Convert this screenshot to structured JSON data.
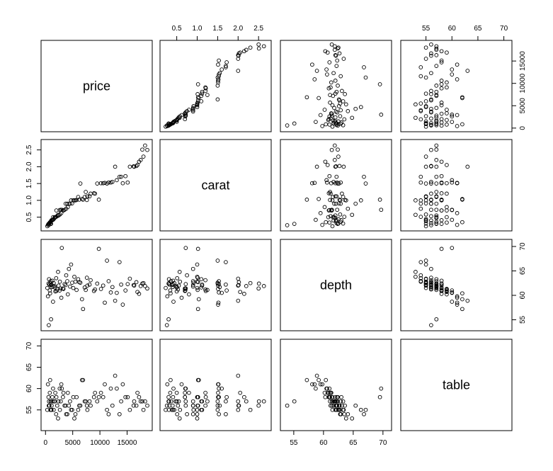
{
  "chart_data": {
    "type": "scatter",
    "title": "",
    "variables": [
      "price",
      "carat",
      "depth",
      "table"
    ],
    "panel_labels": {
      "price": "price",
      "carat": "carat",
      "depth": "depth",
      "table": "table"
    },
    "axes": {
      "price": {
        "range": [
          0,
          18800
        ],
        "ticks": [
          0,
          5000,
          10000,
          15000
        ],
        "tick_labels": [
          "0",
          "5000",
          "10000",
          "15000"
        ]
      },
      "carat": {
        "range": [
          0.2,
          2.7
        ],
        "ticks": [
          0.5,
          1.0,
          1.5,
          2.0,
          2.5
        ],
        "tick_labels": [
          "0.5",
          "1.0",
          "1.5",
          "2.0",
          "2.5"
        ]
      },
      "depth": {
        "range": [
          53.5,
          70.7
        ],
        "ticks": [
          55,
          60,
          65,
          70
        ],
        "tick_labels": [
          "55",
          "60",
          "65",
          "70"
        ]
      },
      "table": {
        "range": [
          51,
          70.7
        ],
        "ticks": [
          55,
          60,
          65,
          70
        ],
        "tick_labels": [
          "55",
          "60",
          "65",
          "70"
        ]
      }
    },
    "observations": {
      "price": [
        326,
        450,
        552,
        640,
        720,
        780,
        850,
        940,
        1010,
        1120,
        1250,
        1380,
        1500,
        1650,
        1800,
        1950,
        2150,
        2400,
        2650,
        2900,
        3200,
        3500,
        3800,
        4100,
        4500,
        4900,
        5300,
        5700,
        6200,
        6700,
        7200,
        7700,
        8300,
        8900,
        9500,
        10200,
        10900,
        11600,
        12300,
        13100,
        13900,
        14700,
        15500,
        16200,
        16900,
        17500,
        18000,
        18700,
        2300,
        4700,
        6900,
        16300,
        17200,
        9800,
        11300,
        1020,
        3300,
        5500,
        7600,
        12800,
        15100,
        2600,
        4300,
        8100,
        600,
        1400,
        3000,
        5100,
        6400,
        14200,
        17800,
        9100,
        13600,
        2000,
        3700,
        900,
        1700,
        4000,
        6000,
        7400,
        10600,
        12000,
        16700,
        18300,
        1100,
        2800
      ],
      "carat": [
        0.23,
        0.27,
        0.3,
        0.31,
        0.32,
        0.34,
        0.35,
        0.36,
        0.38,
        0.4,
        0.41,
        0.42,
        0.44,
        0.47,
        0.5,
        0.51,
        0.53,
        0.55,
        0.58,
        0.62,
        0.7,
        0.72,
        0.75,
        0.8,
        0.9,
        0.91,
        1.0,
        1.01,
        1.02,
        1.04,
        1.1,
        1.12,
        1.2,
        1.21,
        1.5,
        1.51,
        1.52,
        1.53,
        1.55,
        1.6,
        1.7,
        1.72,
        2.0,
        2.01,
        2.05,
        2.2,
        2.3,
        2.5,
        0.57,
        1.0,
        1.02,
        2.0,
        2.15,
        1.02,
        1.5,
        0.3,
        0.7,
        1.0,
        1.01,
        2.0,
        1.53,
        0.71,
        0.9,
        1.12,
        0.26,
        0.5,
        0.72,
        1.0,
        1.5,
        1.51,
        2.51,
        1.2,
        1.7,
        0.7,
        0.9,
        0.31,
        0.5,
        0.9,
        1.1,
        1.25,
        1.51,
        1.53,
        2.02,
        2.63,
        0.41,
        0.72
      ],
      "depth": [
        61.5,
        59.8,
        62.4,
        63.3,
        62.2,
        61.0,
        60.4,
        62.9,
        62.1,
        61.7,
        63.0,
        58.7,
        62.5,
        61.9,
        60.8,
        63.5,
        61.2,
        62.0,
        62.8,
        59.5,
        61.4,
        62.3,
        64.1,
        60.2,
        61.8,
        62.6,
        63.8,
        61.1,
        62.7,
        59.2,
        61.6,
        62.0,
        63.1,
        60.9,
        62.4,
        61.3,
        58.5,
        62.9,
        61.7,
        60.5,
        62.2,
        61.0,
        63.4,
        62.1,
        60.7,
        61.9,
        62.5,
        61.4,
        64.8,
        66.3,
        57.2,
        62.0,
        60.3,
        69.5,
        67.1,
        55.1,
        61.3,
        62.8,
        63.6,
        58.9,
        62.3,
        61.0,
        65.4,
        62.2,
        53.9,
        61.8,
        69.7,
        61.5,
        62.6,
        58.1,
        62.4,
        61.2,
        66.8,
        60.9,
        62.1,
        62.5,
        61.6,
        62.9,
        63.3,
        61.1,
        62.0,
        60.6,
        62.7,
        61.9,
        62.2,
        61.4
      ],
      "table": [
        55,
        61,
        58,
        57,
        56,
        59,
        62,
        57,
        55,
        56,
        58,
        60,
        55,
        57,
        59,
        54,
        56,
        57,
        55,
        61,
        58,
        56,
        54,
        59,
        57,
        55,
        53,
        58,
        56,
        62,
        57,
        55,
        56,
        58,
        57,
        59,
        61,
        54,
        56,
        60,
        57,
        58,
        55,
        56,
        59,
        57,
        55,
        56,
        53,
        55,
        62,
        57,
        58,
        58,
        55,
        57,
        59,
        54,
        56,
        63,
        58,
        60,
        56,
        57,
        56,
        57,
        60,
        58,
        56,
        61,
        57,
        59,
        54,
        58,
        56,
        55,
        57,
        54,
        55,
        57,
        58,
        60,
        56,
        57,
        55,
        57
      ]
    }
  }
}
